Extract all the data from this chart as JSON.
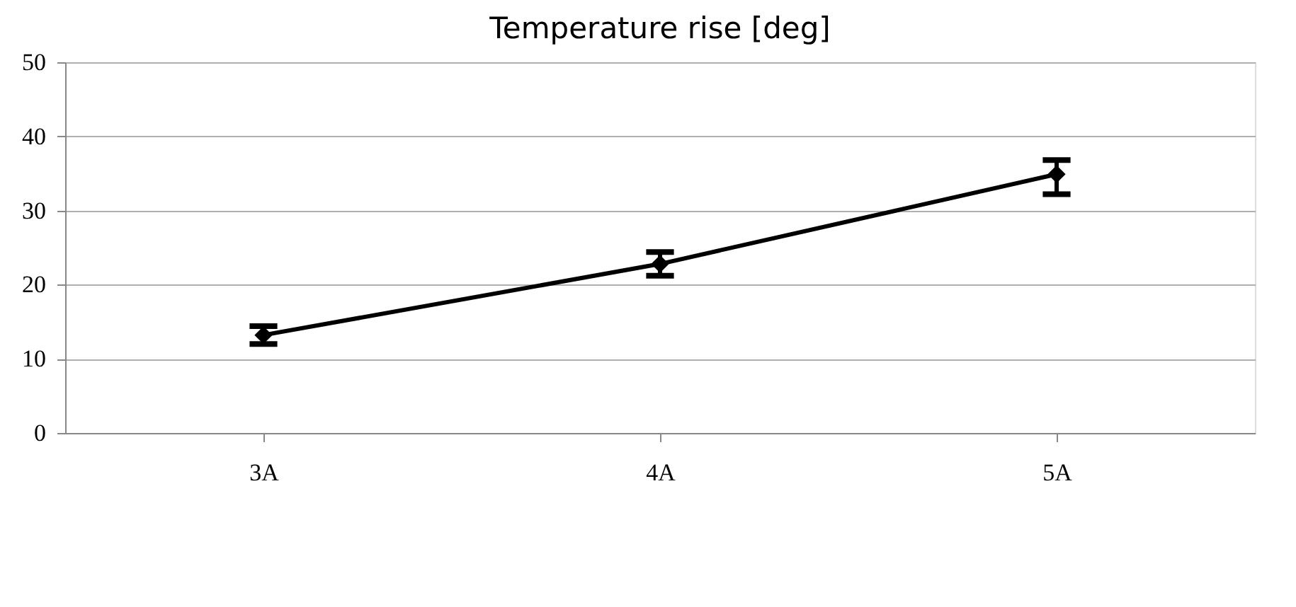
{
  "chart_data": {
    "type": "line",
    "title": "Temperature rise [deg]",
    "categories": [
      "3A",
      "4A",
      "5A"
    ],
    "series": [
      {
        "color": "#000000",
        "values": [
          13.2,
          22.8,
          34.9
        ],
        "errors": [
          1.2,
          1.6,
          [
            32.2,
            36.8
          ]
        ]
      }
    ],
    "ylim": [
      0,
      50
    ],
    "yticks": [
      0,
      10,
      20,
      30,
      40,
      50
    ],
    "grid": "y",
    "marker": "diamond",
    "line_style": "solid"
  }
}
